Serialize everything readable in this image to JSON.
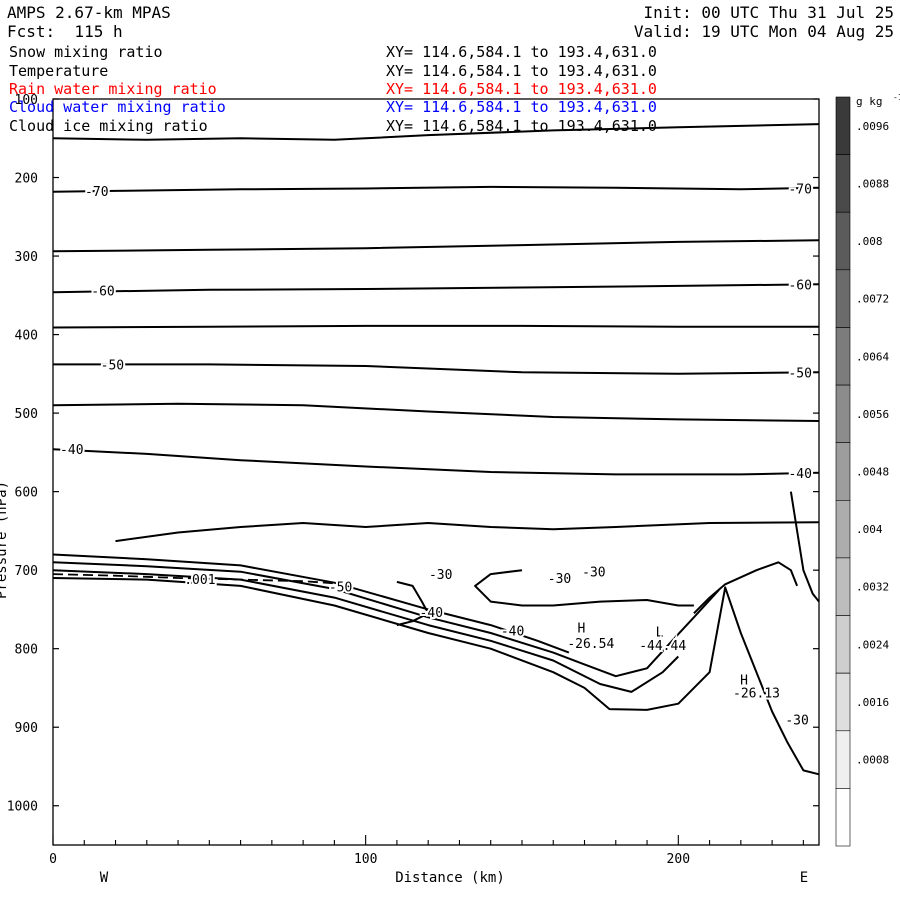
{
  "header": {
    "title": "AMPS 2.67-km MPAS",
    "fcst": "Fcst:  115 h",
    "init": "Init: 00 UTC Thu 31 Jul 25",
    "valid": "Valid: 19 UTC Mon 04 Aug 25"
  },
  "fields": [
    {
      "name": "Snow mixing ratio",
      "xy": "XY= 114.6,584.1 to 193.4,631.0",
      "color": "#000000"
    },
    {
      "name": "Temperature",
      "xy": "XY= 114.6,584.1 to 193.4,631.0",
      "color": "#000000"
    },
    {
      "name": "Rain water mixing ratio",
      "xy": "XY= 114.6,584.1 to 193.4,631.0",
      "color": "#ff0000"
    },
    {
      "name": "Cloud water mixing ratio",
      "xy": "XY= 114.6,584.1 to 193.4,631.0",
      "color": "#0000ff"
    },
    {
      "name": "Cloud ice mixing ratio",
      "xy": "XY= 114.6,584.1 to 193.4,631.0",
      "color": "#000000"
    }
  ],
  "chart_data": {
    "type": "line",
    "xlabel": "Distance (km)",
    "ylabel": "Pressure (hPa)",
    "xlim": [
      0,
      245
    ],
    "ylim": [
      1050,
      100
    ],
    "xticks": [
      0,
      100,
      200
    ],
    "yticks": [
      100,
      200,
      300,
      400,
      500,
      600,
      700,
      800,
      900,
      1000
    ],
    "direction_labels": {
      "left": "W",
      "right": "E"
    },
    "colorbar": {
      "unit": "g kg",
      "unit_exp": "-1",
      "ticks": [
        ".0096",
        ".0088",
        ".008",
        ".0072",
        ".0064",
        ".0056",
        ".0048",
        ".004",
        ".0032",
        ".0024",
        ".0016",
        ".0008"
      ]
    },
    "isotherms": [
      {
        "id": "t150",
        "points": [
          [
            0,
            150
          ],
          [
            30,
            152
          ],
          [
            60,
            150
          ],
          [
            90,
            152
          ],
          [
            100,
            150
          ],
          [
            120,
            146
          ],
          [
            160,
            140
          ],
          [
            200,
            136
          ],
          [
            245,
            132
          ]
        ]
      },
      {
        "id": "t-70",
        "points": [
          [
            0,
            218
          ],
          [
            20,
            217
          ],
          [
            60,
            215
          ],
          [
            100,
            214
          ],
          [
            140,
            212
          ],
          [
            180,
            213
          ],
          [
            220,
            215
          ],
          [
            245,
            213
          ]
        ]
      },
      {
        "id": "t290",
        "points": [
          [
            0,
            294
          ],
          [
            50,
            292
          ],
          [
            100,
            290
          ],
          [
            150,
            286
          ],
          [
            200,
            282
          ],
          [
            245,
            280
          ]
        ]
      },
      {
        "id": "t-60",
        "points": [
          [
            0,
            346
          ],
          [
            50,
            343
          ],
          [
            100,
            342
          ],
          [
            150,
            340
          ],
          [
            200,
            338
          ],
          [
            245,
            336
          ]
        ]
      },
      {
        "id": "t390",
        "points": [
          [
            0,
            391
          ],
          [
            50,
            390
          ],
          [
            100,
            389
          ],
          [
            150,
            389
          ],
          [
            200,
            390
          ],
          [
            245,
            390
          ]
        ]
      },
      {
        "id": "t-50",
        "points": [
          [
            0,
            438
          ],
          [
            50,
            438
          ],
          [
            100,
            440
          ],
          [
            150,
            448
          ],
          [
            200,
            450
          ],
          [
            245,
            448
          ]
        ]
      },
      {
        "id": "t490",
        "points": [
          [
            0,
            490
          ],
          [
            40,
            488
          ],
          [
            80,
            490
          ],
          [
            120,
            498
          ],
          [
            160,
            505
          ],
          [
            200,
            508
          ],
          [
            245,
            510
          ]
        ]
      },
      {
        "id": "t-40",
        "points": [
          [
            0,
            546
          ],
          [
            30,
            552
          ],
          [
            60,
            560
          ],
          [
            100,
            568
          ],
          [
            140,
            575
          ],
          [
            180,
            578
          ],
          [
            220,
            578
          ],
          [
            245,
            576
          ]
        ]
      },
      {
        "id": "t640",
        "points": [
          [
            20,
            663
          ],
          [
            40,
            652
          ],
          [
            60,
            645
          ],
          [
            80,
            640
          ],
          [
            100,
            645
          ],
          [
            120,
            640
          ],
          [
            140,
            645
          ],
          [
            160,
            648
          ],
          [
            180,
            645
          ],
          [
            210,
            640
          ],
          [
            245,
            639
          ]
        ]
      },
      {
        "id": "t-30a",
        "points": [
          [
            150,
            700
          ],
          [
            140,
            705
          ],
          [
            135,
            720
          ],
          [
            140,
            740
          ],
          [
            150,
            745
          ],
          [
            160,
            745
          ],
          [
            175,
            740
          ],
          [
            190,
            738
          ],
          [
            200,
            745
          ],
          [
            205,
            745
          ]
        ]
      },
      {
        "id": "t-30b",
        "points": [
          [
            110,
            715
          ],
          [
            115,
            720
          ],
          [
            118,
            740
          ],
          [
            120,
            755
          ],
          [
            115,
            765
          ],
          [
            110,
            770
          ]
        ]
      },
      {
        "id": "t-30c",
        "points": [
          [
            205,
            755
          ],
          [
            210,
            735
          ],
          [
            215,
            718
          ],
          [
            225,
            700
          ],
          [
            232,
            690
          ],
          [
            236,
            700
          ],
          [
            238,
            720
          ]
        ]
      },
      {
        "id": "t-30d",
        "points": [
          [
            236,
            600
          ],
          [
            238,
            650
          ],
          [
            240,
            700
          ],
          [
            243,
            730
          ],
          [
            245,
            740
          ]
        ]
      },
      {
        "id": "terrain",
        "points": [
          [
            0,
            710
          ],
          [
            30,
            712
          ],
          [
            60,
            720
          ],
          [
            90,
            745
          ],
          [
            120,
            780
          ],
          [
            140,
            800
          ],
          [
            160,
            830
          ],
          [
            170,
            850
          ],
          [
            178,
            877
          ],
          [
            190,
            878
          ],
          [
            200,
            870
          ],
          [
            210,
            830
          ],
          [
            215,
            722
          ],
          [
            220,
            780
          ],
          [
            230,
            880
          ],
          [
            235,
            920
          ],
          [
            240,
            955
          ],
          [
            245,
            960
          ]
        ]
      },
      {
        "id": "valley1",
        "points": [
          [
            0,
            700
          ],
          [
            30,
            705
          ],
          [
            60,
            712
          ],
          [
            90,
            735
          ],
          [
            120,
            770
          ],
          [
            140,
            790
          ],
          [
            160,
            815
          ],
          [
            175,
            845
          ],
          [
            185,
            855
          ],
          [
            195,
            830
          ],
          [
            200,
            810
          ]
        ]
      },
      {
        "id": "valley2",
        "points": [
          [
            0,
            690
          ],
          [
            30,
            695
          ],
          [
            60,
            702
          ],
          [
            90,
            724
          ],
          [
            120,
            760
          ],
          [
            140,
            780
          ],
          [
            160,
            805
          ],
          [
            170,
            820
          ],
          [
            180,
            835
          ],
          [
            190,
            825
          ],
          [
            198,
            790
          ],
          [
            205,
            760
          ],
          [
            213,
            725
          ]
        ]
      },
      {
        "id": "valley3",
        "points": [
          [
            0,
            680
          ],
          [
            30,
            686
          ],
          [
            60,
            694
          ],
          [
            90,
            716
          ],
          [
            120,
            750
          ],
          [
            140,
            770
          ],
          [
            155,
            790
          ],
          [
            165,
            805
          ]
        ]
      }
    ],
    "dashed": [
      {
        "id": "q001",
        "points": [
          [
            0,
            705
          ],
          [
            20,
            707
          ],
          [
            40,
            710
          ],
          [
            60,
            712
          ],
          [
            80,
            714
          ],
          [
            95,
            718
          ]
        ]
      }
    ],
    "contour_labels": [
      {
        "text": "-70",
        "x": 14,
        "p": 217
      },
      {
        "text": "-70",
        "x": 239,
        "p": 214
      },
      {
        "text": "-60",
        "x": 16,
        "p": 344
      },
      {
        "text": "-60",
        "x": 239,
        "p": 336
      },
      {
        "text": "-50",
        "x": 19,
        "p": 438
      },
      {
        "text": "-50",
        "x": 239,
        "p": 448
      },
      {
        "text": "-40",
        "x": 6,
        "p": 546
      },
      {
        "text": "-40",
        "x": 239,
        "p": 576
      },
      {
        "text": "-30",
        "x": 124,
        "p": 705
      },
      {
        "text": "-30",
        "x": 162,
        "p": 710
      },
      {
        "text": "-30",
        "x": 173,
        "p": 702
      },
      {
        "text": "-30",
        "x": 238,
        "p": 890
      },
      {
        "text": ".001",
        "x": 47,
        "p": 711
      },
      {
        "text": "-50",
        "x": 92,
        "p": 721
      },
      {
        "text": "-40",
        "x": 121,
        "p": 753
      },
      {
        "text": "-40",
        "x": 147,
        "p": 777
      },
      {
        "text": "H",
        "x": 169,
        "p": 773
      },
      {
        "text": "-26.54",
        "x": 172,
        "p": 793
      },
      {
        "text": "L",
        "x": 194,
        "p": 778
      },
      {
        "text": "-44.44",
        "x": 195,
        "p": 795
      },
      {
        "text": "H",
        "x": 221,
        "p": 839
      },
      {
        "text": "-26.13",
        "x": 225,
        "p": 856
      }
    ]
  }
}
